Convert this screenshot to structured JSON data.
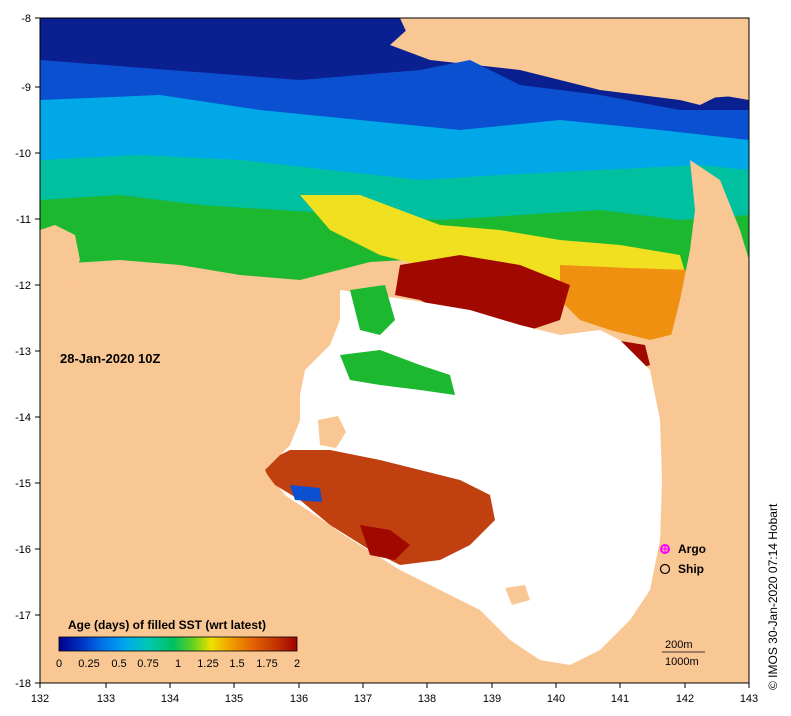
{
  "map": {
    "timestamp": "28-Jan-2020 10Z",
    "credit": "© IMOS 30-Jan-2020 07:14 Hobart",
    "x_ticks": [
      "132",
      "133",
      "134",
      "135",
      "136",
      "137",
      "138",
      "139",
      "140",
      "141",
      "142",
      "143"
    ],
    "y_ticks": [
      "-8",
      "-9",
      "-10",
      "-11",
      "-12",
      "-13",
      "-14",
      "-15",
      "-16",
      "-17",
      "-18"
    ],
    "legend": {
      "argo_label": "Argo",
      "ship_label": "Ship",
      "argo_color": "#ff00ff",
      "ship_color": "#000000"
    },
    "depth_legend": {
      "contour_1": "200m",
      "contour_2": "1000m"
    },
    "colorbar": {
      "title": "Age (days) of filled SST (wrt latest)",
      "tick_labels": [
        "0",
        "0.25",
        "0.5",
        "0.75",
        "1",
        "1.25",
        "1.5",
        "1.75",
        "2"
      ],
      "colors": [
        "#00008b",
        "#0030c0",
        "#0070e8",
        "#00a8f0",
        "#00c8b0",
        "#00c060",
        "#30d020",
        "#a0e020",
        "#f0e000",
        "#f0a000",
        "#e06000",
        "#c03000",
        "#a00000"
      ]
    },
    "colors": {
      "land": "#f9c794",
      "no_data": "#ffffff",
      "deep_blue": "#0a1a8a",
      "blue": "#0a50d0",
      "mid_blue": "#0080e8",
      "cyan": "#00b8e0",
      "teal": "#00c0a0",
      "green": "#1cb830",
      "light_green": "#60d020",
      "yellow": "#f0e020",
      "orange": "#f09010",
      "rust": "#c04010",
      "dark_red": "#a00800"
    }
  }
}
